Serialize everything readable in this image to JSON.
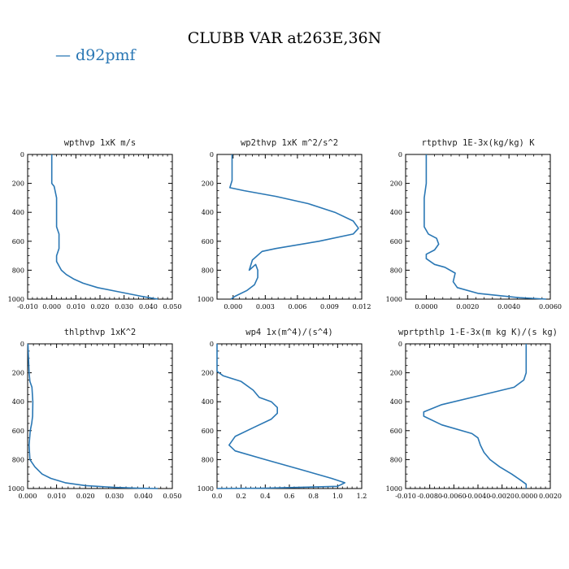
{
  "title": "CLUBB VAR at263E,36N",
  "legend": {
    "label": "— d92pmf",
    "color": "#2a77b4"
  },
  "chart_data": [
    {
      "type": "line",
      "title": "wpthvp  1xK m/s",
      "ylim": [
        1000,
        0
      ],
      "yticks": [
        0,
        200,
        400,
        600,
        800,
        1000
      ],
      "xlim": [
        -0.01,
        0.05
      ],
      "xticks": [
        -0.01,
        0.0,
        0.01,
        0.02,
        0.03,
        0.04,
        0.05
      ],
      "xticklabels": [
        "-0.010",
        "0.000",
        "0.010",
        "0.020",
        "0.030",
        "0.040",
        "0.050"
      ],
      "series": [
        {
          "x": [
            0.0,
            0.0,
            0.0,
            0.001,
            0.002,
            0.002,
            0.002,
            0.003,
            0.003,
            0.003,
            0.002,
            0.002,
            0.003,
            0.004,
            0.006,
            0.009,
            0.013,
            0.019,
            0.028,
            0.037,
            0.044
          ],
          "y": [
            0,
            100,
            200,
            220,
            300,
            400,
            500,
            550,
            600,
            650,
            700,
            740,
            770,
            800,
            830,
            860,
            890,
            920,
            950,
            980,
            1000
          ]
        }
      ]
    },
    {
      "type": "line",
      "title": "wp2thvp  1xK m^2/s^2",
      "ylim": [
        1000,
        0
      ],
      "yticks": [
        0,
        200,
        400,
        600,
        800,
        1000
      ],
      "xlim": [
        -0.0015,
        0.012
      ],
      "xticks": [
        0.0,
        0.003,
        0.006,
        0.009,
        0.012
      ],
      "xticklabels": [
        "0.000",
        "0.003",
        "0.006",
        "0.009",
        "0.012"
      ],
      "series": [
        {
          "x": [
            -0.0001,
            -0.0001,
            -0.0001,
            -0.0003,
            0.001,
            0.004,
            0.007,
            0.0095,
            0.0112,
            0.0117,
            0.0112,
            0.008,
            0.004,
            0.0027,
            0.0018,
            0.0015,
            0.0021,
            0.0023,
            0.0023,
            0.002,
            0.0013,
            0.0002,
            -0.0002
          ],
          "y": [
            0,
            100,
            180,
            230,
            250,
            290,
            340,
            400,
            460,
            510,
            550,
            600,
            650,
            670,
            730,
            800,
            760,
            800,
            850,
            900,
            940,
            980,
            1000
          ]
        }
      ]
    },
    {
      "type": "line",
      "title": "rtpthvp  1E-3x(kg/kg) K",
      "ylim": [
        1000,
        0
      ],
      "yticks": [
        0,
        200,
        400,
        600,
        800,
        1000
      ],
      "xlim": [
        -0.001,
        0.006
      ],
      "xticks": [
        0.0,
        0.002,
        0.004,
        0.006
      ],
      "xticklabels": [
        "0.0000",
        "0.0020",
        "0.0040",
        "0.0060"
      ],
      "series": [
        {
          "x": [
            0.0,
            0.0,
            0.0,
            -0.0001,
            -0.0001,
            -0.0001,
            0.0001,
            0.0005,
            0.0006,
            0.0004,
            0.0,
            0.0,
            0.0004,
            0.0009,
            0.0014,
            0.0013,
            0.0015,
            0.0025,
            0.0045,
            0.0058
          ],
          "y": [
            0,
            100,
            200,
            300,
            400,
            500,
            550,
            580,
            620,
            660,
            690,
            720,
            760,
            780,
            820,
            880,
            920,
            960,
            990,
            1000
          ]
        }
      ]
    },
    {
      "type": "line",
      "title": "thlpthvp  1xK^2",
      "ylim": [
        1000,
        0
      ],
      "yticks": [
        0,
        200,
        400,
        600,
        800,
        1000
      ],
      "xlim": [
        0.0,
        0.05
      ],
      "xticks": [
        0.0,
        0.01,
        0.02,
        0.03,
        0.04,
        0.05
      ],
      "xticklabels": [
        "0.000",
        "0.010",
        "0.020",
        "0.030",
        "0.040",
        "0.050"
      ],
      "series": [
        {
          "x": [
            0.0001,
            0.0003,
            0.0005,
            0.0008,
            0.0015,
            0.0018,
            0.0017,
            0.0014,
            0.0009,
            0.0005,
            0.0008,
            0.0025,
            0.005,
            0.008,
            0.013,
            0.02,
            0.03,
            0.038,
            0.045
          ],
          "y": [
            0,
            100,
            200,
            260,
            300,
            400,
            500,
            550,
            600,
            700,
            800,
            850,
            900,
            930,
            960,
            980,
            992,
            998,
            1000
          ]
        }
      ]
    },
    {
      "type": "line",
      "title": "wp4  1x(m^4)/(s^4)",
      "ylim": [
        1000,
        0
      ],
      "yticks": [
        0,
        200,
        400,
        600,
        800,
        1000
      ],
      "xlim": [
        0.0,
        1.2
      ],
      "xticks": [
        0.0,
        0.2,
        0.4,
        0.6,
        0.8,
        1.0,
        1.2
      ],
      "xticklabels": [
        "0.0",
        "0.2",
        "0.4",
        "0.6",
        "0.8",
        "1.0",
        "1.2"
      ],
      "series": [
        {
          "x": [
            0.0,
            0.0,
            0.0,
            0.05,
            0.2,
            0.3,
            0.35,
            0.45,
            0.5,
            0.5,
            0.45,
            0.3,
            0.15,
            0.1,
            0.15,
            0.4,
            0.7,
            0.95,
            1.06,
            1.0,
            0.4,
            0.0
          ],
          "y": [
            0,
            100,
            190,
            220,
            260,
            320,
            370,
            400,
            440,
            480,
            520,
            580,
            640,
            700,
            740,
            800,
            870,
            930,
            960,
            985,
            998,
            1000
          ]
        }
      ]
    },
    {
      "type": "line",
      "title": "wprtpthlp  1-E-3x(m kg K)/(s kg)",
      "ylim": [
        1000,
        0
      ],
      "yticks": [
        0,
        200,
        400,
        600,
        800,
        1000
      ],
      "xlim": [
        -0.01,
        0.002
      ],
      "xticks": [
        -0.01,
        -0.008,
        -0.006,
        -0.004,
        -0.002,
        0.0,
        0.002
      ],
      "xticklabels": [
        "-0.010",
        "-0.0080",
        "-0.0060",
        "-0.0040",
        "-0.0020",
        "0.0000",
        "0.0020"
      ],
      "series": [
        {
          "x": [
            0.0,
            0.0,
            0.0,
            -0.0002,
            -0.001,
            -0.004,
            -0.007,
            -0.0085,
            -0.0085,
            -0.007,
            -0.0045,
            -0.004,
            -0.0038,
            -0.0035,
            -0.003,
            -0.0022,
            -0.0012,
            -0.0005,
            0.0,
            0.0
          ],
          "y": [
            0,
            100,
            200,
            250,
            300,
            360,
            420,
            470,
            500,
            560,
            620,
            650,
            700,
            750,
            800,
            850,
            900,
            940,
            970,
            1000
          ]
        }
      ]
    }
  ]
}
